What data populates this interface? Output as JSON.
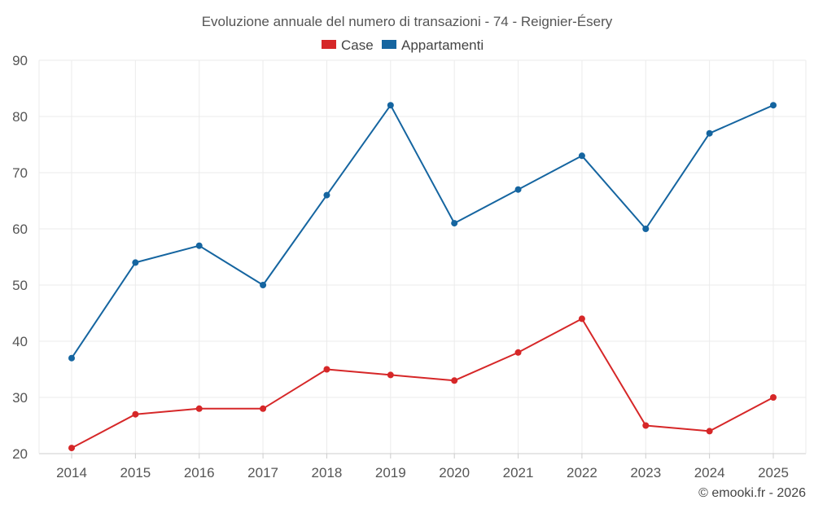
{
  "chart_data": {
    "type": "line",
    "title": "Evoluzione annuale del numero di transazioni - 74 - Reignier-Ésery",
    "categories": [
      "2014",
      "2015",
      "2016",
      "2017",
      "2018",
      "2019",
      "2020",
      "2021",
      "2022",
      "2023",
      "2024",
      "2025"
    ],
    "series": [
      {
        "name": "Case",
        "color": "#d62728",
        "values": [
          21,
          27,
          28,
          28,
          35,
          34,
          33,
          38,
          44,
          25,
          24,
          30
        ]
      },
      {
        "name": "Appartamenti",
        "color": "#1565a0",
        "values": [
          37,
          54,
          57,
          50,
          66,
          82,
          61,
          67,
          73,
          60,
          77,
          82
        ]
      }
    ],
    "ylim": [
      20,
      90
    ],
    "yticks": [
      "20",
      "30",
      "40",
      "50",
      "60",
      "70",
      "80",
      "90"
    ],
    "grid": true,
    "legend_position": "top-center",
    "xlabel": "",
    "ylabel": ""
  },
  "credit": "© emooki.fr - 2026"
}
